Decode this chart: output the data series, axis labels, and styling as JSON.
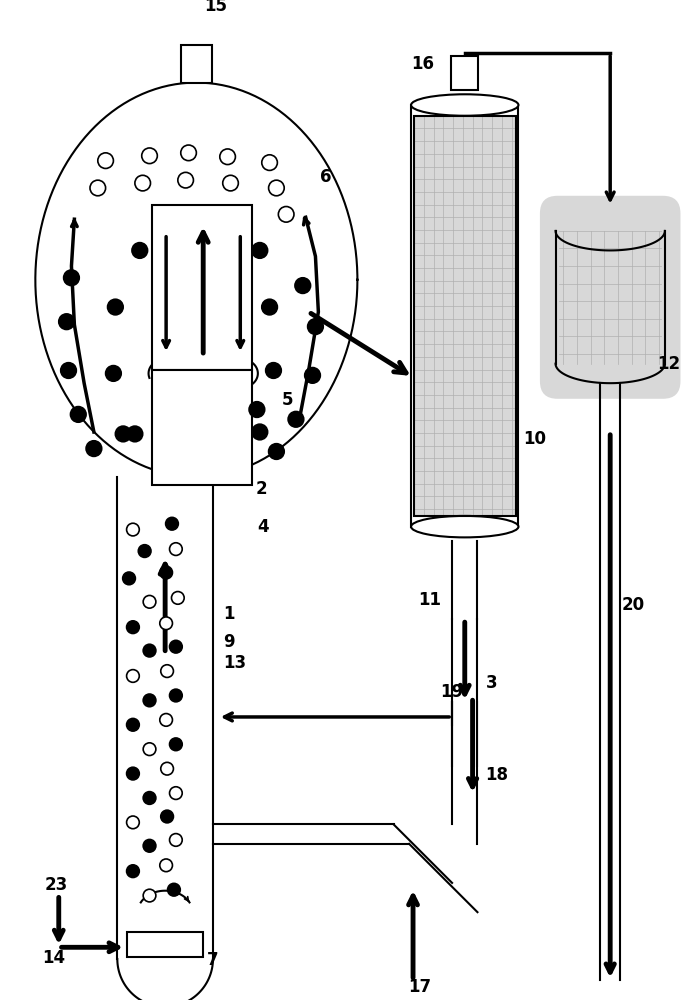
{
  "bg_color": "#ffffff",
  "lc": "#000000",
  "lw": 1.5,
  "lw2": 2.5,
  "lw3": 3.5
}
